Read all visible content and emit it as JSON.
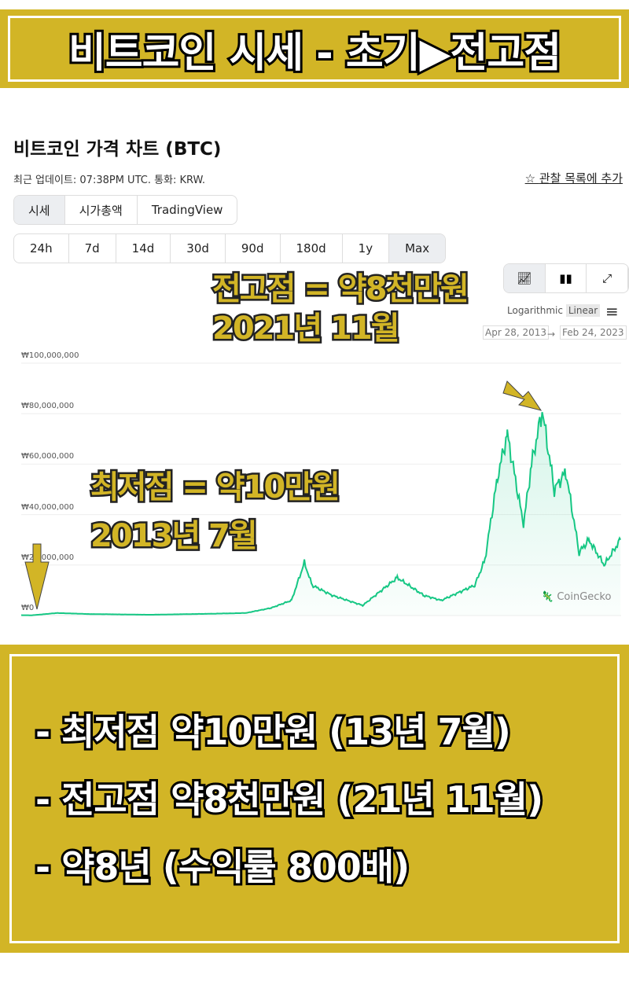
{
  "banner": {
    "title": "비트코인 시세 - 초기▶전고점"
  },
  "header": {
    "title": "비트코인 가격 차트 (BTC)",
    "subtitle": "최근 업데이트: 07:38PM UTC. 통화: KRW.",
    "watchlist": "관찰 목록에 추가",
    "watch_icon": "star-icon"
  },
  "tabs": [
    {
      "label": "시세",
      "selected": true
    },
    {
      "label": "시가총액"
    },
    {
      "label": "TradingView"
    }
  ],
  "ranges": [
    {
      "label": "24h"
    },
    {
      "label": "7d"
    },
    {
      "label": "14d"
    },
    {
      "label": "30d"
    },
    {
      "label": "90d"
    },
    {
      "label": "180d"
    },
    {
      "label": "1y"
    },
    {
      "label": "Max",
      "selected": true
    }
  ],
  "tools": {
    "line_icon": "line-chart-icon",
    "candle_icon": "candlestick-icon",
    "expand_icon": "expand-icon"
  },
  "scale": {
    "log": "Logarithmic",
    "linear": "Linear",
    "selected": "Linear"
  },
  "date_range": {
    "from": "Apr 28, 2013",
    "arrow": "→",
    "to": "Feb 24, 2023"
  },
  "watermark": "CoinGecko",
  "annotations": {
    "peak_line1": "전고점 = 약8천만원",
    "peak_line2": "2021년 11월",
    "low_line1": "최저점 = 약10만원",
    "low_line2": "2013년 7월"
  },
  "summary": [
    "- 최저점 약10만원 (13년 7월)",
    "- 전고점 약8천만원 (21년 11월)",
    "- 약8년 (수익률 800배)"
  ],
  "colors": {
    "accent": "#d2b526",
    "line": "#16c784"
  },
  "chart_data": {
    "type": "area",
    "ylim": [
      0,
      100000000
    ],
    "yticks": [
      "₩0",
      "₩20,000,000",
      "₩40,000,000",
      "₩60,000,000",
      "₩80,000,000",
      "₩100,000,000"
    ],
    "xlim": [
      "2013-04-28",
      "2023-02-24"
    ],
    "grid": true,
    "points": [
      [
        "2013-04-28",
        150000
      ],
      [
        "2013-07-01",
        100000
      ],
      [
        "2013-12-01",
        1000000
      ],
      [
        "2014-06-01",
        600000
      ],
      [
        "2015-06-01",
        300000
      ],
      [
        "2016-06-01",
        700000
      ],
      [
        "2017-01-01",
        1000000
      ],
      [
        "2017-06-01",
        3000000
      ],
      [
        "2017-10-01",
        6000000
      ],
      [
        "2017-12-17",
        21000000
      ],
      [
        "2018-02-01",
        12000000
      ],
      [
        "2018-06-01",
        8000000
      ],
      [
        "2018-12-01",
        4000000
      ],
      [
        "2019-06-26",
        15000000
      ],
      [
        "2019-12-01",
        8000000
      ],
      [
        "2020-03-15",
        6000000
      ],
      [
        "2020-10-01",
        12000000
      ],
      [
        "2020-12-01",
        22000000
      ],
      [
        "2021-02-15",
        55000000
      ],
      [
        "2021-04-14",
        72000000
      ],
      [
        "2021-07-20",
        36000000
      ],
      [
        "2021-09-06",
        60000000
      ],
      [
        "2021-11-09",
        81000000
      ],
      [
        "2022-01-20",
        50000000
      ],
      [
        "2022-03-30",
        57000000
      ],
      [
        "2022-06-18",
        25000000
      ],
      [
        "2022-08-15",
        30000000
      ],
      [
        "2022-11-15",
        20000000
      ],
      [
        "2023-02-20",
        30000000
      ]
    ]
  }
}
